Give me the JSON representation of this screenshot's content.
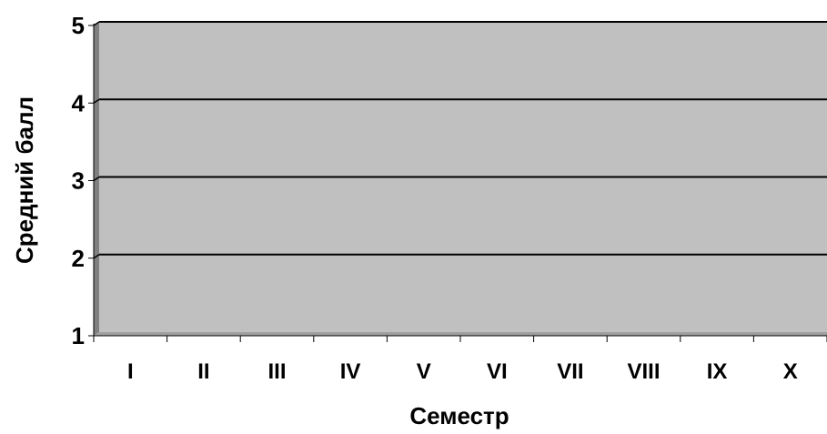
{
  "chart_data": {
    "type": "bar",
    "title": "",
    "xlabel": "Семестр",
    "ylabel": "Средний балл",
    "categories": [
      "I",
      "II",
      "III",
      "IV",
      "V",
      "VI",
      "VII",
      "VIII",
      "IX",
      "X"
    ],
    "series": [],
    "ylim": [
      1,
      5
    ],
    "yticks": [
      "1",
      "2",
      "3",
      "4",
      "5"
    ],
    "grid": true,
    "legend": "none",
    "colors": {
      "plot_area": "#c0c0c0",
      "wall_side": "#808080",
      "floor": "#a0a0a0",
      "gridline": "#000000",
      "text": "#000000"
    }
  }
}
